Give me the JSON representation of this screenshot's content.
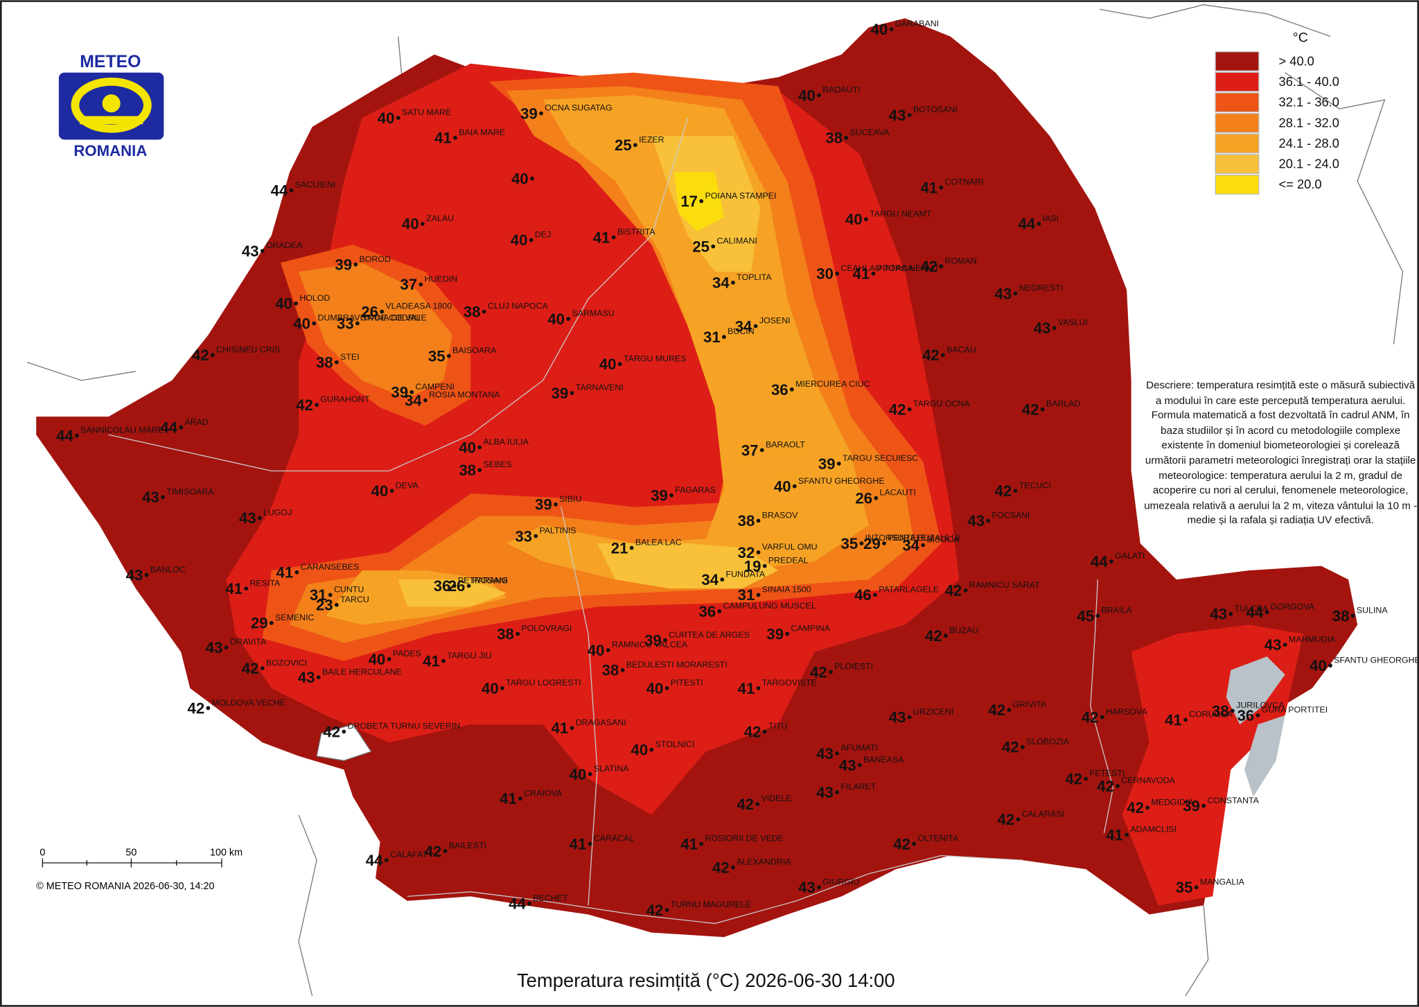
{
  "header": {
    "title": "Temperatura resimțită (°C) 2026-06-30 14:00",
    "logo": {
      "top": "METEO",
      "bottom": "ROMANIA"
    }
  },
  "legend": {
    "unit": "°C",
    "classes": [
      {
        "label": "> 40.0",
        "color": "#a3140f"
      },
      {
        "label": "36.1 - 40.0",
        "color": "#dd1e16"
      },
      {
        "label": "32.1 - 36.0",
        "color": "#ef5417"
      },
      {
        "label": "28.1 - 32.0",
        "color": "#f3801a"
      },
      {
        "label": "24.1 - 28.0",
        "color": "#f6a325"
      },
      {
        "label": "20.1 - 24.0",
        "color": "#f8c139"
      },
      {
        "label": "<= 20.0",
        "color": "#fbdd0e"
      }
    ]
  },
  "description": "Descriere: temperatura resimțită este o măsură subiectivă a modului în care este percepută temperatura aerului. Formula matematică a fost dezvoltată în cadrul ANM, în baza studiilor și în acord cu metodologiile complexe existente în domeniul biometeorologiei și corelează următorii parametri meteorologici înregistrați orar la stațiile meteorologice: temperatura aerului la 2 m, gradul de acoperire cu nori al cerului, fenomenele meteorologice, umezeala relativă a aerului la 2 m, viteza vântului la 10 m - medie și la rafala și radiația UV efectivă.",
  "scale_bar": {
    "labels": [
      "0",
      "50",
      "100 km"
    ]
  },
  "copyright": "© METEO ROMANIA 2026-06-30, 14:20",
  "stations": [
    {
      "name": "DARABANI",
      "value": 40
    },
    {
      "name": "RADAUTI",
      "value": 40
    },
    {
      "name": "BOTOSANI",
      "value": 43
    },
    {
      "name": "SUCEAVA",
      "value": 38
    },
    {
      "name": "COTNARI",
      "value": 41
    },
    {
      "name": "IASI",
      "value": 44
    },
    {
      "name": "TARGU NEAMT",
      "value": 40
    },
    {
      "name": "PIATRA NEAMT",
      "value": 41
    },
    {
      "name": "ROMAN",
      "value": 42
    },
    {
      "name": "NEGRESTI",
      "value": 43
    },
    {
      "name": "VASLUI",
      "value": 43
    },
    {
      "name": "BACAU",
      "value": 42
    },
    {
      "name": "TARGU OCNA",
      "value": 42
    },
    {
      "name": "BARLAD",
      "value": 42
    },
    {
      "name": "TECUCI",
      "value": 42
    },
    {
      "name": "FOCSANI",
      "value": 43
    },
    {
      "name": "GALATI",
      "value": 44
    },
    {
      "name": "BRAILA",
      "value": 45
    },
    {
      "name": "TULCEA",
      "value": 43
    },
    {
      "name": "GORGOVA",
      "value": 44
    },
    {
      "name": "MAHMUDIA",
      "value": 43
    },
    {
      "name": "SULINA",
      "value": 38
    },
    {
      "name": "SFANTU GHEORGHE",
      "value": 40
    },
    {
      "name": "JURILOVCA",
      "value": 38
    },
    {
      "name": "GURA PORTITEI",
      "value": 36
    },
    {
      "name": "CORUGEA",
      "value": 41
    },
    {
      "name": "HARSOVA",
      "value": 42
    },
    {
      "name": "CONSTANTA",
      "value": 39
    },
    {
      "name": "MEDGIDIA",
      "value": 42
    },
    {
      "name": "CERNAVODA",
      "value": 42
    },
    {
      "name": "FETESTI",
      "value": 42
    },
    {
      "name": "ADAMCLISI",
      "value": 41
    },
    {
      "name": "MANGALIA",
      "value": 35
    },
    {
      "name": "CALARASI",
      "value": 42
    },
    {
      "name": "OLTENITA",
      "value": 42
    },
    {
      "name": "GIURGIU",
      "value": 43
    },
    {
      "name": "ALEXANDRIA",
      "value": 42
    },
    {
      "name": "TURNU MAGURELE",
      "value": 42
    },
    {
      "name": "ROSIORII DE VEDE",
      "value": 41
    },
    {
      "name": "BECHET",
      "value": 44
    },
    {
      "name": "CARACAL",
      "value": 41
    },
    {
      "name": "BAILESTI",
      "value": 42
    },
    {
      "name": "CALAFAT",
      "value": 44
    },
    {
      "name": "CRAIOVA",
      "value": 41
    },
    {
      "name": "SLATINA",
      "value": 40
    },
    {
      "name": "STOLNICI",
      "value": 40
    },
    {
      "name": "DRAGASANI",
      "value": 41
    },
    {
      "name": "PITESTI",
      "value": 40
    },
    {
      "name": "TARGOVISTE",
      "value": 41
    },
    {
      "name": "TITU",
      "value": 42
    },
    {
      "name": "VIDELE",
      "value": 42
    },
    {
      "name": "AFUMATI",
      "value": 43
    },
    {
      "name": "BANEASA",
      "value": 43
    },
    {
      "name": "FILARET",
      "value": 43
    },
    {
      "name": "URZICENI",
      "value": 43
    },
    {
      "name": "GRIVITA",
      "value": 42
    },
    {
      "name": "SLOBOZIA",
      "value": 42
    },
    {
      "name": "BUZAU",
      "value": 42
    },
    {
      "name": "PLOIESTI",
      "value": 42
    },
    {
      "name": "CAMPINA",
      "value": 39
    },
    {
      "name": "SINAIA 1500",
      "value": 31
    },
    {
      "name": "VARFUL OMU",
      "value": 32
    },
    {
      "name": "PREDEAL",
      "value": 19
    },
    {
      "name": "FUNDATA",
      "value": 34
    },
    {
      "name": "CAMPULUNG MUSCEL",
      "value": 36
    },
    {
      "name": "CURTEA DE ARGES",
      "value": 39
    },
    {
      "name": "RAMNICU VALCEA",
      "value": 40
    },
    {
      "name": "BEDULESTI MORARESTI",
      "value": 38
    },
    {
      "name": "TARGU LOGRESTI",
      "value": 40
    },
    {
      "name": "POLOVRAGI",
      "value": 38
    },
    {
      "name": "TARGU JIU",
      "value": 41
    },
    {
      "name": "PADES",
      "value": 40
    },
    {
      "name": "BAILE HERCULANE",
      "value": 43
    },
    {
      "name": "BOZOVICI",
      "value": 42
    },
    {
      "name": "MOLDOVA VECHE",
      "value": 42
    },
    {
      "name": "DROBETA TURNU SEVERIN",
      "value": 42
    },
    {
      "name": "ORAVITA",
      "value": 43
    },
    {
      "name": "SEMENIC",
      "value": 29
    },
    {
      "name": "RESITA",
      "value": 41
    },
    {
      "name": "CARANSEBES",
      "value": 41
    },
    {
      "name": "CUNTU",
      "value": 31
    },
    {
      "name": "TARCU",
      "value": 23
    },
    {
      "name": "BANLOC",
      "value": 43
    },
    {
      "name": "LUGOJ",
      "value": 43
    },
    {
      "name": "TIMISOARA",
      "value": 43
    },
    {
      "name": "DEVA",
      "value": 40
    },
    {
      "name": "SANNICOLAU MARE",
      "value": 44
    },
    {
      "name": "ARAD",
      "value": 44
    },
    {
      "name": "GURAHONT",
      "value": 42
    },
    {
      "name": "CAMPENI",
      "value": 39
    },
    {
      "name": "ROSIA MONTANA",
      "value": 34
    },
    {
      "name": "BAISOARA",
      "value": 35
    },
    {
      "name": "STEI",
      "value": 38
    },
    {
      "name": "CHISINEU CRIS",
      "value": 42
    },
    {
      "name": "HOLOD",
      "value": 40
    },
    {
      "name": "DUMBRAVITA DE CODRU",
      "value": 40
    },
    {
      "name": "STANA DE VALE",
      "value": 33
    },
    {
      "name": "VLADEASA 1800",
      "value": 26
    },
    {
      "name": "BOROD",
      "value": 39
    },
    {
      "name": "HUEDIN",
      "value": 37
    },
    {
      "name": "ORADEA",
      "value": 43
    },
    {
      "name": "SACUIENI",
      "value": 44
    },
    {
      "name": "SATU MARE",
      "value": 40
    },
    {
      "name": "ZALAU",
      "value": 40
    },
    {
      "name": "DEJ",
      "value": 40
    },
    {
      "name": "BAIA MARE",
      "value": 41
    },
    {
      "name": "OCNA SUGATAG",
      "value": 39
    },
    {
      "value": 40
    },
    {
      "name": "IEZER",
      "value": 25
    },
    {
      "name": "POIANA STAMPEI",
      "value": 17
    },
    {
      "name": "CALIMANI",
      "value": 25
    },
    {
      "name": "BISTRITA",
      "value": 41
    },
    {
      "name": "TOPLITA",
      "value": 34
    },
    {
      "name": "CEAHLAU TOACA",
      "value": 30
    },
    {
      "name": "BUCIN",
      "value": 31
    },
    {
      "name": "JOSENI",
      "value": 34
    },
    {
      "name": "CLUJ NAPOCA",
      "value": 38
    },
    {
      "name": "SARMASU",
      "value": 40
    },
    {
      "name": "TARGU MURES",
      "value": 40
    },
    {
      "name": "TARNAVENI",
      "value": 39
    },
    {
      "name": "MIERCUREA CIUC",
      "value": 36
    },
    {
      "name": "BARAOLT",
      "value": 37
    },
    {
      "name": "TARGU SECUIESC",
      "value": 39
    },
    {
      "name": "SFANTU GHEORGHE",
      "value": 40
    },
    {
      "name": "LACAUTI",
      "value": 26
    },
    {
      "name": "INTORSURA BUZAULUI",
      "value": 35
    },
    {
      "name": "PENTELEU",
      "value": 29
    },
    {
      "name": "BISOCA",
      "value": 34
    },
    {
      "name": "RAMNICU SARAT",
      "value": 42
    },
    {
      "name": "PATARLAGELE",
      "value": 46
    },
    {
      "name": "BRASOV",
      "value": 38
    },
    {
      "name": "FAGARAS",
      "value": 39
    },
    {
      "name": "BALEA LAC",
      "value": 21
    },
    {
      "name": "SIBIU",
      "value": 39
    },
    {
      "name": "PALTINIS",
      "value": 33
    },
    {
      "name": "SEBES",
      "value": 38
    },
    {
      "name": "ALBA IULIA",
      "value": 40
    },
    {
      "name": "PETROSANI",
      "value": 36
    },
    {
      "name": "PARANG",
      "value": 26
    }
  ]
}
